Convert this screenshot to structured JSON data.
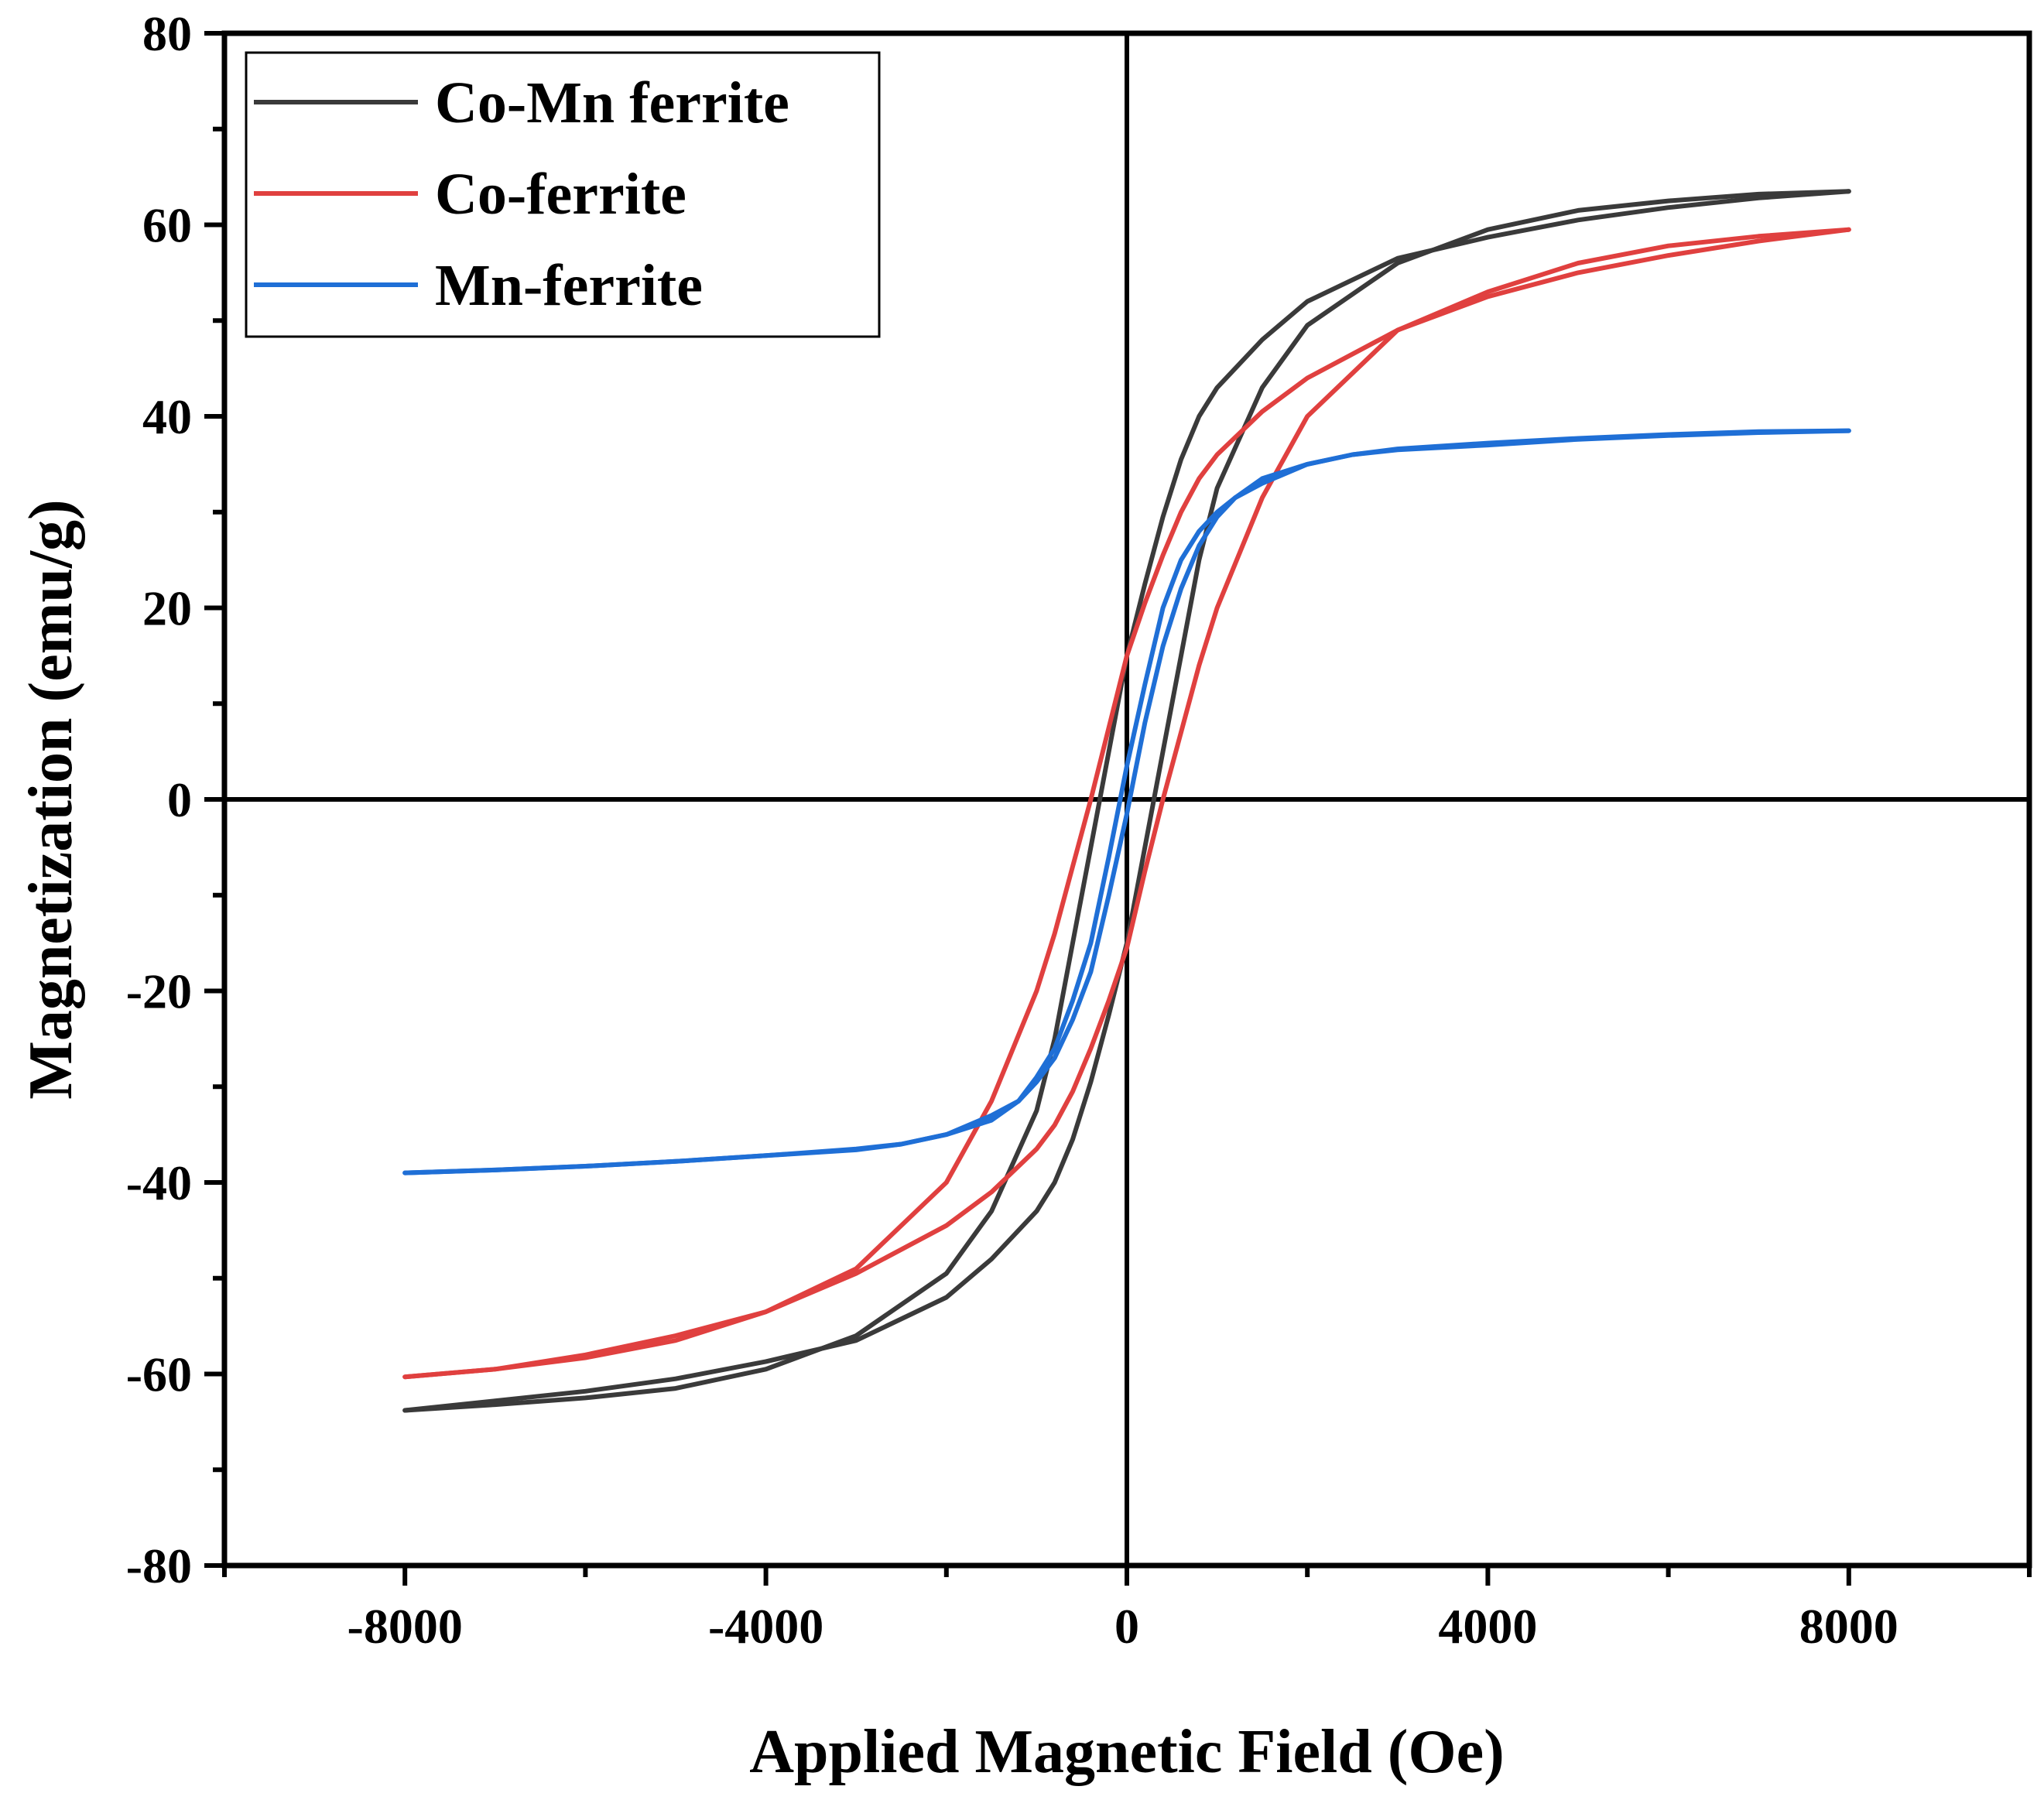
{
  "chart_data": {
    "type": "line",
    "title": "",
    "xlabel": "Applied Magnetic Field (Oe)",
    "ylabel": "Magnetization (emu/g)",
    "xlim": [
      -10000,
      10000
    ],
    "ylim": [
      -80,
      80
    ],
    "xticks": [
      -8000,
      -4000,
      0,
      4000,
      8000
    ],
    "xtick_labels": [
      "-8000",
      "-4000",
      "0",
      "4000",
      "8000"
    ],
    "yticks": [
      -80,
      -60,
      -40,
      -20,
      0,
      20,
      40,
      60,
      80
    ],
    "ytick_labels": [
      "-80",
      "-60",
      "-40",
      "-20",
      "0",
      "20",
      "40",
      "60",
      "80"
    ],
    "grid": false,
    "legend_position": "top-left",
    "series": [
      {
        "name": "Co-Mn ferrite",
        "color": "#3a3a3a",
        "descending": {
          "x": [
            8000,
            7000,
            6000,
            5000,
            4000,
            3000,
            2000,
            1500,
            1000,
            800,
            600,
            400,
            200,
            0,
            -200,
            -400,
            -600,
            -800,
            -1000,
            -1500,
            -2000,
            -3000,
            -4000,
            -5000,
            -6000,
            -7000,
            -8000
          ],
          "y": [
            63.5,
            62.8,
            61.8,
            60.5,
            58.7,
            56.5,
            52,
            48,
            43,
            40,
            35.5,
            29.5,
            22.5,
            15,
            5,
            -5,
            -15,
            -25,
            -32.5,
            -43,
            -49.5,
            -56,
            -59.5,
            -61.5,
            -62.5,
            -63.2,
            -63.8
          ]
        },
        "ascending": {
          "x": [
            -8000,
            -7000,
            -6000,
            -5000,
            -4000,
            -3000,
            -2000,
            -1500,
            -1000,
            -800,
            -600,
            -400,
            -200,
            0,
            200,
            400,
            600,
            800,
            1000,
            1500,
            2000,
            3000,
            4000,
            5000,
            6000,
            7000,
            8000
          ],
          "y": [
            -63.8,
            -62.8,
            -61.8,
            -60.5,
            -58.7,
            -56.5,
            -52,
            -48,
            -43,
            -40,
            -35.5,
            -29.5,
            -22.5,
            -15,
            -5,
            5,
            15,
            25,
            32.5,
            43,
            49.5,
            56,
            59.5,
            61.5,
            62.5,
            63.2,
            63.5
          ]
        }
      },
      {
        "name": "Co-ferrite",
        "color": "#e0403f",
        "descending": {
          "x": [
            8000,
            7000,
            6000,
            5000,
            4000,
            3000,
            2000,
            1500,
            1000,
            800,
            600,
            400,
            200,
            0,
            -200,
            -400,
            -600,
            -800,
            -1000,
            -1500,
            -2000,
            -3000,
            -4000,
            -5000,
            -6000,
            -7000,
            -8000
          ],
          "y": [
            59.5,
            58.3,
            56.8,
            55,
            52.5,
            49,
            44,
            40.5,
            36,
            33.5,
            30,
            25.5,
            20.5,
            15,
            7.5,
            0,
            -7,
            -14,
            -20,
            -31.5,
            -40,
            -49,
            -53.5,
            -56.5,
            -58.3,
            -59.5,
            -60.3
          ]
        },
        "ascending": {
          "x": [
            -8000,
            -7000,
            -6000,
            -5000,
            -4000,
            -3000,
            -2000,
            -1500,
            -1000,
            -800,
            -600,
            -400,
            -200,
            0,
            200,
            400,
            600,
            800,
            1000,
            1500,
            2000,
            3000,
            4000,
            5000,
            6000,
            7000,
            8000
          ],
          "y": [
            -60.3,
            -59.5,
            -58,
            -56,
            -53.5,
            -49.5,
            -44.5,
            -41,
            -36.5,
            -34,
            -30.5,
            -26,
            -21,
            -15.5,
            -7.5,
            0,
            7,
            14,
            20,
            31.5,
            40,
            49,
            53,
            56,
            57.8,
            58.8,
            59.5
          ]
        }
      },
      {
        "name": "Mn-ferrite",
        "color": "#1f6fd6",
        "descending": {
          "x": [
            8000,
            7000,
            6000,
            5000,
            4000,
            3000,
            2500,
            2000,
            1500,
            1200,
            1000,
            800,
            600,
            400,
            200,
            0,
            -200,
            -400,
            -600,
            -800,
            -1000,
            -1200,
            -1500,
            -2000,
            -2500,
            -3000,
            -4000,
            -5000,
            -6000,
            -7000,
            -8000
          ],
          "y": [
            38.5,
            38.3,
            38,
            37.6,
            37,
            36.5,
            36,
            35,
            33,
            31.5,
            30,
            28,
            25,
            20,
            12,
            3.5,
            -6,
            -15,
            -21,
            -26,
            -29,
            -31.5,
            -33.5,
            -35,
            -36,
            -36.6,
            -37.2,
            -37.8,
            -38.3,
            -38.7,
            -39
          ]
        },
        "ascending": {
          "x": [
            -8000,
            -7000,
            -6000,
            -5000,
            -4000,
            -3000,
            -2500,
            -2000,
            -1500,
            -1200,
            -1000,
            -800,
            -600,
            -400,
            -200,
            0,
            200,
            400,
            600,
            800,
            1000,
            1200,
            1500,
            2000,
            2500,
            3000,
            4000,
            5000,
            6000,
            7000,
            8000
          ],
          "y": [
            -39,
            -38.7,
            -38.3,
            -37.8,
            -37.2,
            -36.5,
            -36,
            -35,
            -33,
            -31.5,
            -29.5,
            -27,
            -23,
            -18,
            -10,
            -1.5,
            8,
            16,
            22,
            26.5,
            29.5,
            31.5,
            33.5,
            35,
            36,
            36.6,
            37.2,
            37.7,
            38.1,
            38.4,
            38.5
          ]
        }
      }
    ]
  }
}
